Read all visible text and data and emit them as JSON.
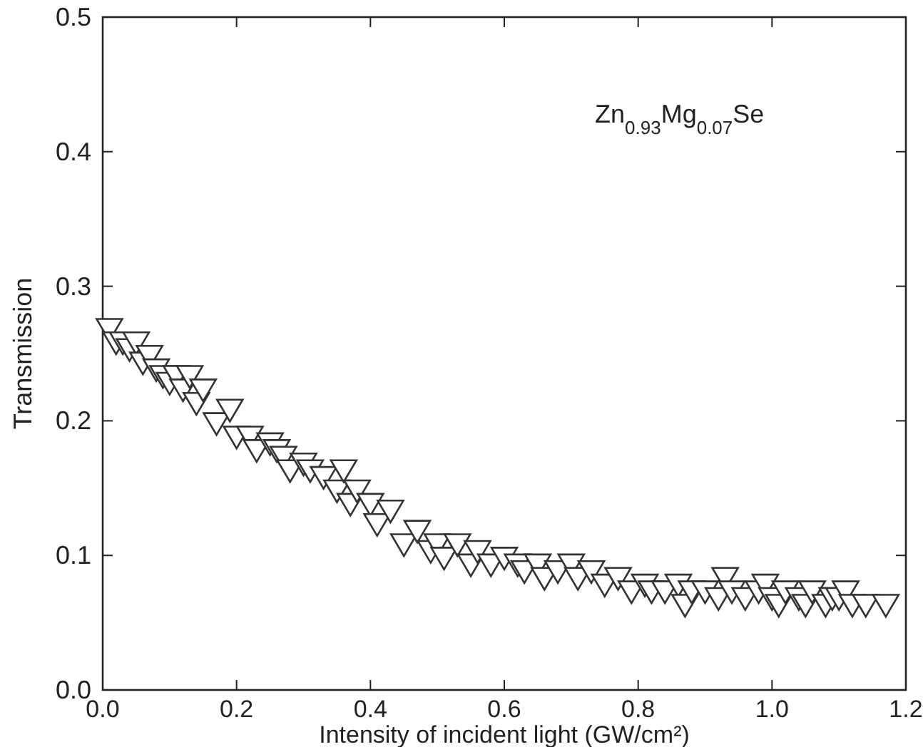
{
  "chart_data": {
    "type": "scatter",
    "xlabel": "Intensity of incident light (GW/cm²)",
    "ylabel": "Transmission",
    "annotations": [
      "Zn$_{0.93}$Mg$_{0.07}$Se"
    ],
    "xlim": [
      0,
      1.2
    ],
    "ylim": [
      0,
      0.5
    ],
    "xticks": [
      {
        "value": 0,
        "label": "0.0"
      },
      {
        "value": 0.2,
        "label": "0.2"
      },
      {
        "value": 0.4,
        "label": "0.4"
      },
      {
        "value": 0.6,
        "label": "0.6"
      },
      {
        "value": 0.8,
        "label": "0.8"
      },
      {
        "value": 1,
        "label": "1.0"
      },
      {
        "value": 1.2,
        "label": "1.2"
      }
    ],
    "yticks": [
      {
        "value": 0,
        "label": "0.0"
      },
      {
        "value": 0.1,
        "label": "0.1"
      },
      {
        "value": 0.2,
        "label": "0.2"
      },
      {
        "value": 0.3,
        "label": "0.3"
      },
      {
        "value": 0.4,
        "label": "0.4"
      },
      {
        "value": 0.5,
        "label": "0.5"
      }
    ],
    "marker": "triangle",
    "grid": false,
    "series": [
      {
        "color": "#333333",
        "x": [
          0.01,
          0.02,
          0.03,
          0.04,
          0.05,
          0.06,
          0.07,
          0.08,
          0.09,
          0.1,
          0.11,
          0.12,
          0.13,
          0.14,
          0.15,
          0.17,
          0.19,
          0.2,
          0.22,
          0.23,
          0.25,
          0.26,
          0.27,
          0.28,
          0.3,
          0.31,
          0.33,
          0.35,
          0.36,
          0.37,
          0.38,
          0.4,
          0.41,
          0.43,
          0.45,
          0.47,
          0.49,
          0.5,
          0.51,
          0.53,
          0.55,
          0.56,
          0.58,
          0.6,
          0.62,
          0.63,
          0.65,
          0.66,
          0.68,
          0.7,
          0.71,
          0.73,
          0.75,
          0.77,
          0.79,
          0.81,
          0.82,
          0.84,
          0.86,
          0.87,
          0.88,
          0.9,
          0.92,
          0.93,
          0.94,
          0.96,
          0.98,
          0.99,
          1,
          1.01,
          1.02,
          1.04,
          1.05,
          1.06,
          1.08,
          1.09,
          1.1,
          1.11,
          1.12,
          1.14,
          1.17
        ],
        "values": [
          0.27,
          0.26,
          0.26,
          0.255,
          0.26,
          0.245,
          0.25,
          0.24,
          0.235,
          0.23,
          0.235,
          0.225,
          0.235,
          0.215,
          0.225,
          0.2,
          0.21,
          0.19,
          0.19,
          0.18,
          0.185,
          0.18,
          0.175,
          0.165,
          0.17,
          0.165,
          0.16,
          0.15,
          0.165,
          0.14,
          0.15,
          0.14,
          0.125,
          0.135,
          0.11,
          0.12,
          0.105,
          0.11,
          0.1,
          0.11,
          0.095,
          0.105,
          0.095,
          0.1,
          0.095,
          0.09,
          0.095,
          0.085,
          0.09,
          0.095,
          0.085,
          0.09,
          0.08,
          0.085,
          0.075,
          0.08,
          0.075,
          0.075,
          0.08,
          0.065,
          0.075,
          0.075,
          0.07,
          0.085,
          0.075,
          0.07,
          0.075,
          0.08,
          0.07,
          0.065,
          0.075,
          0.07,
          0.065,
          0.075,
          0.065,
          0.07,
          0.07,
          0.075,
          0.065,
          0.065,
          0.065
        ]
      }
    ]
  }
}
